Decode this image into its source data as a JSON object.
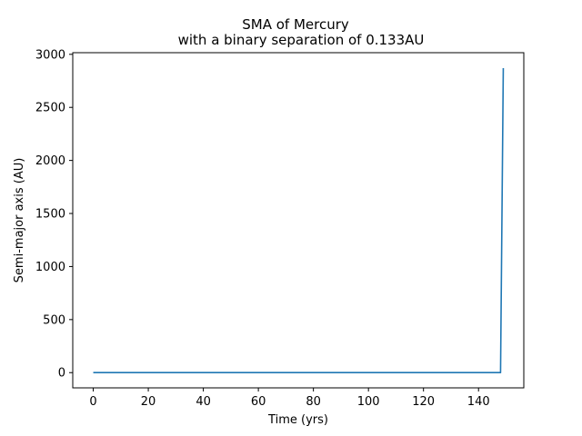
{
  "chart_data": {
    "type": "line",
    "title_line1": "SMA of Mercury",
    "title_line2": "with a binary separation of 0.133AU",
    "xlabel": "Time (yrs)",
    "ylabel": "Semi-major axis (AU)",
    "xlim": [
      -7.45,
      156.45
    ],
    "ylim": [
      -143.5,
      3015.5
    ],
    "xticks": [
      0,
      20,
      40,
      60,
      80,
      100,
      120,
      140
    ],
    "yticks": [
      0,
      500,
      1000,
      1500,
      2000,
      2500,
      3000
    ],
    "grid": false,
    "legend": "none",
    "color": "#1f77b4",
    "series": [
      {
        "x": [
          0,
          20,
          40,
          60,
          80,
          100,
          120,
          140,
          148,
          149
        ],
        "y": [
          0.39,
          0.39,
          0.39,
          0.39,
          0.39,
          0.39,
          0.39,
          0.39,
          0.39,
          2870
        ]
      }
    ]
  }
}
